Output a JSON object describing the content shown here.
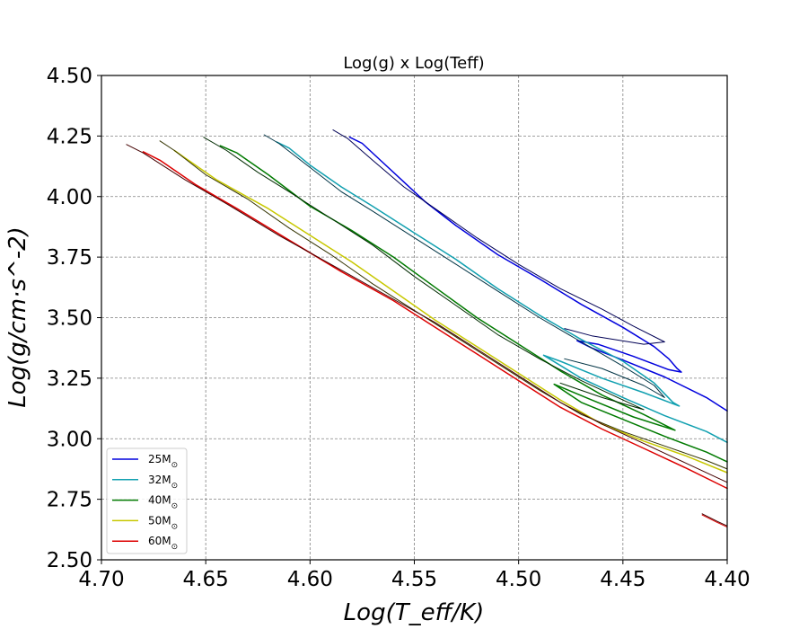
{
  "chart_data": {
    "type": "line",
    "title": "Log(g) x Log(Teff)",
    "xlabel": "Log(T_eff/K)",
    "ylabel": "Log(g/cm·s^-2)",
    "xlim": [
      4.7,
      4.4
    ],
    "ylim": [
      2.5,
      4.5
    ],
    "x_inverted": true,
    "grid": true,
    "legend_position": "lower-left",
    "x_ticks": [
      "4.70",
      "4.65",
      "4.60",
      "4.55",
      "4.50",
      "4.45",
      "4.40"
    ],
    "y_ticks": [
      "2.50",
      "2.75",
      "3.00",
      "3.25",
      "3.50",
      "3.75",
      "4.00",
      "4.25",
      "4.50"
    ],
    "series": [
      {
        "name": "25M_⊙",
        "color": "#0000dd",
        "points": [
          [
            4.581,
            4.245
          ],
          [
            4.575,
            4.22
          ],
          [
            4.565,
            4.14
          ],
          [
            4.555,
            4.06
          ],
          [
            4.545,
            3.98
          ],
          [
            4.53,
            3.88
          ],
          [
            4.51,
            3.76
          ],
          [
            4.49,
            3.66
          ],
          [
            4.47,
            3.555
          ],
          [
            4.45,
            3.46
          ],
          [
            4.435,
            3.38
          ],
          [
            4.428,
            3.33
          ],
          [
            4.424,
            3.29
          ],
          [
            4.422,
            3.275
          ],
          [
            4.428,
            3.285
          ],
          [
            4.445,
            3.34
          ],
          [
            4.462,
            3.39
          ],
          [
            4.472,
            3.405
          ],
          [
            4.465,
            3.375
          ],
          [
            4.45,
            3.325
          ],
          [
            4.43,
            3.255
          ],
          [
            4.41,
            3.17
          ],
          [
            4.4,
            3.115
          ]
        ]
      },
      {
        "name": "",
        "color": "#000055",
        "points": [
          [
            4.589,
            4.275
          ],
          [
            4.582,
            4.24
          ],
          [
            4.57,
            4.15
          ],
          [
            4.555,
            4.04
          ],
          [
            4.54,
            3.95
          ],
          [
            4.52,
            3.83
          ],
          [
            4.5,
            3.72
          ],
          [
            4.48,
            3.62
          ],
          [
            4.46,
            3.535
          ],
          [
            4.445,
            3.465
          ],
          [
            4.43,
            3.4
          ],
          [
            4.44,
            3.39
          ],
          [
            4.465,
            3.425
          ],
          [
            4.478,
            3.455
          ]
        ]
      },
      {
        "name": "32M_⊙",
        "color": "#11a0b0",
        "points": [
          [
            4.616,
            4.225
          ],
          [
            4.61,
            4.2
          ],
          [
            4.6,
            4.13
          ],
          [
            4.585,
            4.04
          ],
          [
            4.57,
            3.96
          ],
          [
            4.55,
            3.85
          ],
          [
            4.53,
            3.74
          ],
          [
            4.51,
            3.62
          ],
          [
            4.49,
            3.51
          ],
          [
            4.47,
            3.41
          ],
          [
            4.45,
            3.32
          ],
          [
            4.435,
            3.23
          ],
          [
            4.426,
            3.15
          ],
          [
            4.423,
            3.135
          ],
          [
            4.44,
            3.19
          ],
          [
            4.46,
            3.25
          ],
          [
            4.48,
            3.32
          ],
          [
            4.488,
            3.345
          ],
          [
            4.47,
            3.25
          ],
          [
            4.45,
            3.17
          ],
          [
            4.43,
            3.095
          ],
          [
            4.41,
            3.03
          ],
          [
            4.4,
            2.985
          ]
        ]
      },
      {
        "name": "",
        "color": "#003344",
        "points": [
          [
            4.622,
            4.255
          ],
          [
            4.615,
            4.22
          ],
          [
            4.6,
            4.12
          ],
          [
            4.585,
            4.02
          ],
          [
            4.57,
            3.94
          ],
          [
            4.55,
            3.83
          ],
          [
            4.53,
            3.72
          ],
          [
            4.51,
            3.61
          ],
          [
            4.49,
            3.5
          ],
          [
            4.47,
            3.4
          ],
          [
            4.45,
            3.3
          ],
          [
            4.435,
            3.22
          ],
          [
            4.43,
            3.17
          ],
          [
            4.44,
            3.22
          ],
          [
            4.46,
            3.29
          ],
          [
            4.478,
            3.33
          ]
        ]
      },
      {
        "name": "40M_⊙",
        "color": "#007a00",
        "points": [
          [
            4.643,
            4.21
          ],
          [
            4.635,
            4.18
          ],
          [
            4.62,
            4.09
          ],
          [
            4.6,
            3.96
          ],
          [
            4.58,
            3.86
          ],
          [
            4.56,
            3.75
          ],
          [
            4.54,
            3.625
          ],
          [
            4.52,
            3.5
          ],
          [
            4.5,
            3.39
          ],
          [
            4.48,
            3.28
          ],
          [
            4.46,
            3.18
          ],
          [
            4.44,
            3.1
          ],
          [
            4.425,
            3.035
          ],
          [
            4.445,
            3.09
          ],
          [
            4.465,
            3.16
          ],
          [
            4.483,
            3.225
          ],
          [
            4.47,
            3.15
          ],
          [
            4.45,
            3.08
          ],
          [
            4.43,
            3.01
          ],
          [
            4.41,
            2.945
          ],
          [
            4.4,
            2.905
          ]
        ]
      },
      {
        "name": "",
        "color": "#002a00",
        "points": [
          [
            4.651,
            4.245
          ],
          [
            4.64,
            4.19
          ],
          [
            4.625,
            4.1
          ],
          [
            4.61,
            4.02
          ],
          [
            4.59,
            3.91
          ],
          [
            4.57,
            3.8
          ],
          [
            4.55,
            3.67
          ],
          [
            4.53,
            3.55
          ],
          [
            4.51,
            3.43
          ],
          [
            4.49,
            3.33
          ],
          [
            4.47,
            3.24
          ],
          [
            4.45,
            3.16
          ],
          [
            4.44,
            3.12
          ],
          [
            4.46,
            3.17
          ],
          [
            4.48,
            3.23
          ]
        ]
      },
      {
        "name": "50M_⊙",
        "color": "#c8c800",
        "points": [
          [
            4.665,
            4.19
          ],
          [
            4.66,
            4.16
          ],
          [
            4.645,
            4.07
          ],
          [
            4.62,
            3.95
          ],
          [
            4.6,
            3.84
          ],
          [
            4.58,
            3.73
          ],
          [
            4.56,
            3.61
          ],
          [
            4.54,
            3.49
          ],
          [
            4.52,
            3.38
          ],
          [
            4.5,
            3.27
          ],
          [
            4.48,
            3.16
          ],
          [
            4.46,
            3.06
          ],
          [
            4.44,
            2.99
          ],
          [
            4.42,
            2.93
          ],
          [
            4.4,
            2.86
          ]
        ]
      },
      {
        "name": "",
        "color": "#333300",
        "points": [
          [
            4.672,
            4.23
          ],
          [
            4.665,
            4.19
          ],
          [
            4.65,
            4.09
          ],
          [
            4.63,
            3.99
          ],
          [
            4.61,
            3.87
          ],
          [
            4.59,
            3.76
          ],
          [
            4.57,
            3.64
          ],
          [
            4.55,
            3.53
          ],
          [
            4.53,
            3.42
          ],
          [
            4.51,
            3.31
          ],
          [
            4.49,
            3.2
          ],
          [
            4.47,
            3.1
          ],
          [
            4.45,
            3.03
          ],
          [
            4.43,
            2.97
          ],
          [
            4.41,
            2.91
          ],
          [
            4.4,
            2.875
          ]
        ]
      },
      {
        "name": "60M_⊙",
        "color": "#dd0000",
        "points": [
          [
            4.68,
            4.185
          ],
          [
            4.672,
            4.15
          ],
          [
            4.655,
            4.05
          ],
          [
            4.635,
            3.95
          ],
          [
            4.61,
            3.82
          ],
          [
            4.585,
            3.69
          ],
          [
            4.56,
            3.57
          ],
          [
            4.54,
            3.46
          ],
          [
            4.52,
            3.35
          ],
          [
            4.5,
            3.24
          ],
          [
            4.48,
            3.13
          ],
          [
            4.46,
            3.04
          ],
          [
            4.44,
            2.96
          ],
          [
            4.42,
            2.88
          ],
          [
            4.4,
            2.795
          ]
        ]
      },
      {
        "name": "",
        "color": "#440000",
        "points": [
          [
            4.688,
            4.215
          ],
          [
            4.68,
            4.18
          ],
          [
            4.66,
            4.07
          ],
          [
            4.64,
            3.97
          ],
          [
            4.615,
            3.84
          ],
          [
            4.59,
            3.72
          ],
          [
            4.565,
            3.6
          ],
          [
            4.54,
            3.48
          ],
          [
            4.52,
            3.37
          ],
          [
            4.5,
            3.26
          ],
          [
            4.48,
            3.15
          ],
          [
            4.46,
            3.06
          ],
          [
            4.44,
            2.98
          ],
          [
            4.42,
            2.9
          ],
          [
            4.4,
            2.82
          ]
        ]
      },
      {
        "name": "",
        "color": "#dd0000",
        "points": [
          [
            4.412,
            2.685
          ],
          [
            4.405,
            2.655
          ],
          [
            4.4,
            2.635
          ]
        ]
      },
      {
        "name": "",
        "color": "#440000",
        "points": [
          [
            4.412,
            2.69
          ],
          [
            4.405,
            2.66
          ],
          [
            4.4,
            2.64
          ]
        ]
      }
    ]
  }
}
